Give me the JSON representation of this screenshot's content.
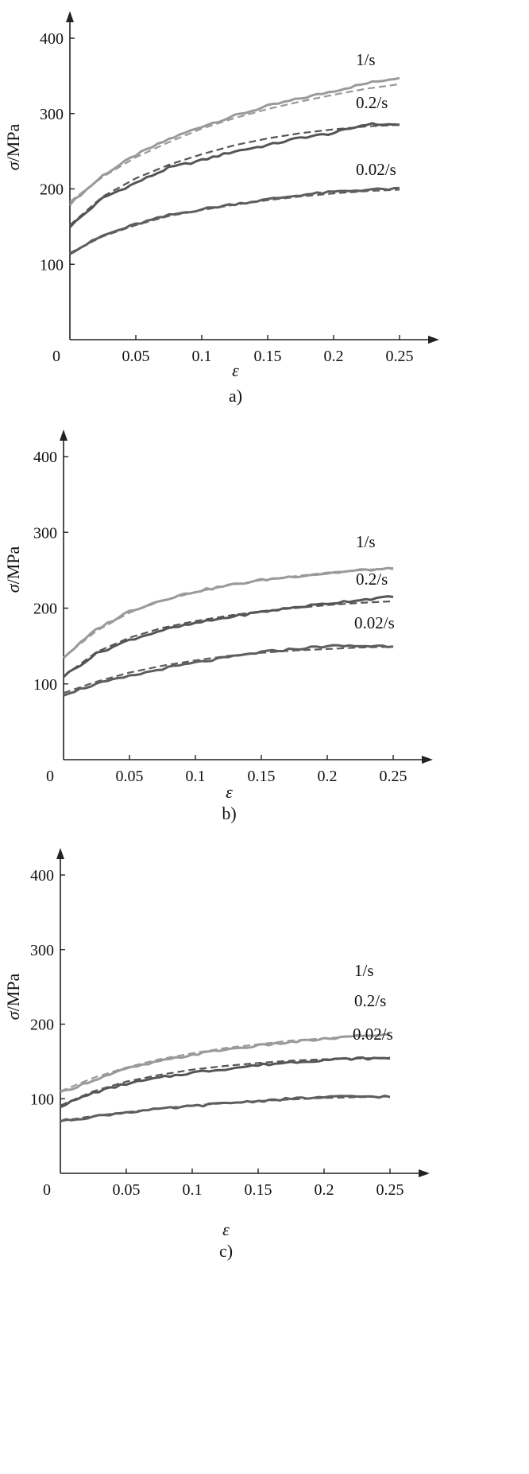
{
  "chart_data": [
    {
      "type": "line",
      "panel_label": "a)",
      "xlabel": "ε",
      "ylabel": "σ/MPa",
      "xlim": [
        0,
        0.25
      ],
      "ylim": [
        0,
        400
      ],
      "xticks": [
        "0",
        "0.05",
        "0.1",
        "0.15",
        "0.2",
        "0.25"
      ],
      "xtick_values": [
        0,
        0.05,
        0.1,
        0.15,
        0.2,
        0.25
      ],
      "yticks": [
        "100",
        "200",
        "300",
        "400"
      ],
      "ytick_values": [
        100,
        200,
        300,
        400
      ],
      "series": [
        {
          "name": "1/s",
          "color": "#9a9a9a",
          "x": [
            0,
            0.025,
            0.05,
            0.075,
            0.1,
            0.125,
            0.15,
            0.175,
            0.2,
            0.225,
            0.25
          ],
          "measured": [
            180,
            218,
            245,
            266,
            283,
            297,
            310,
            320,
            330,
            340,
            348
          ],
          "fitted": [
            183,
            216,
            242,
            262,
            280,
            294,
            306,
            316,
            325,
            333,
            339
          ]
        },
        {
          "name": "0.2/s",
          "color": "#555555",
          "x": [
            0,
            0.025,
            0.05,
            0.075,
            0.1,
            0.125,
            0.15,
            0.175,
            0.2,
            0.225,
            0.25
          ],
          "measured": [
            150,
            188,
            208,
            228,
            238,
            250,
            258,
            268,
            274,
            286,
            285
          ],
          "fitted": [
            152,
            190,
            214,
            232,
            246,
            258,
            267,
            274,
            279,
            283,
            285
          ]
        },
        {
          "name": "0.02/s",
          "color": "#5e5e5e",
          "x": [
            0,
            0.025,
            0.05,
            0.075,
            0.1,
            0.125,
            0.15,
            0.175,
            0.2,
            0.225,
            0.25
          ],
          "measured": [
            115,
            138,
            153,
            165,
            173,
            180,
            186,
            192,
            196,
            199,
            200
          ],
          "fitted": [
            115,
            137,
            152,
            164,
            172,
            179,
            185,
            190,
            194,
            197,
            199
          ]
        }
      ]
    },
    {
      "type": "line",
      "panel_label": "b)",
      "xlabel": "ε",
      "ylabel": "σ/MPa",
      "xlim": [
        0,
        0.25
      ],
      "ylim": [
        0,
        400
      ],
      "xticks": [
        "0",
        "0.05",
        "0.1",
        "0.15",
        "0.2",
        "0.25"
      ],
      "xtick_values": [
        0,
        0.05,
        0.1,
        0.15,
        0.2,
        0.25
      ],
      "yticks": [
        "100",
        "200",
        "300",
        "400"
      ],
      "ytick_values": [
        100,
        200,
        300,
        400
      ],
      "series": [
        {
          "name": "1/s",
          "color": "#9a9a9a",
          "x": [
            0,
            0.025,
            0.05,
            0.075,
            0.1,
            0.125,
            0.15,
            0.175,
            0.2,
            0.225,
            0.25
          ],
          "measured": [
            135,
            172,
            196,
            211,
            222,
            230,
            237,
            242,
            246,
            250,
            252
          ],
          "fitted": [
            135,
            170,
            194,
            210,
            221,
            230,
            237,
            242,
            247,
            250,
            253
          ]
        },
        {
          "name": "0.2/s",
          "color": "#555555",
          "x": [
            0,
            0.025,
            0.05,
            0.075,
            0.1,
            0.125,
            0.15,
            0.175,
            0.2,
            0.225,
            0.25
          ],
          "measured": [
            110,
            140,
            158,
            171,
            180,
            188,
            195,
            201,
            206,
            211,
            215
          ],
          "fitted": [
            110,
            142,
            161,
            174,
            183,
            190,
            196,
            200,
            204,
            207,
            209
          ]
        },
        {
          "name": "0.02/s",
          "color": "#5e5e5e",
          "x": [
            0,
            0.025,
            0.05,
            0.075,
            0.1,
            0.125,
            0.15,
            0.175,
            0.2,
            0.225,
            0.25
          ],
          "measured": [
            86,
            100,
            110,
            120,
            128,
            135,
            142,
            146,
            150,
            150,
            150
          ],
          "fitted": [
            88,
            103,
            115,
            124,
            131,
            137,
            141,
            144,
            146,
            148,
            149
          ]
        }
      ]
    },
    {
      "type": "line",
      "panel_label": "c)",
      "xlabel": "ε",
      "ylabel": "σ/MPa",
      "xlim": [
        0,
        0.25
      ],
      "ylim": [
        0,
        400
      ],
      "xticks": [
        "0",
        "0.05",
        "0.1",
        "0.15",
        "0.2",
        "0.25"
      ],
      "xtick_values": [
        0,
        0.05,
        0.1,
        0.15,
        0.2,
        0.25
      ],
      "yticks": [
        "100",
        "200",
        "300",
        "400"
      ],
      "ytick_values": [
        100,
        200,
        300,
        400
      ],
      "series": [
        {
          "name": "1/s",
          "color": "#9a9a9a",
          "x": [
            0,
            0.025,
            0.05,
            0.075,
            0.1,
            0.125,
            0.15,
            0.175,
            0.2,
            0.225,
            0.25
          ],
          "measured": [
            108,
            125,
            140,
            150,
            159,
            166,
            171,
            176,
            180,
            184,
            186
          ],
          "fitted": [
            110,
            128,
            142,
            153,
            161,
            168,
            173,
            178,
            181,
            184,
            186
          ]
        },
        {
          "name": "0.2/s",
          "color": "#555555",
          "x": [
            0,
            0.025,
            0.05,
            0.075,
            0.1,
            0.125,
            0.15,
            0.175,
            0.2,
            0.225,
            0.25
          ],
          "measured": [
            90,
            108,
            120,
            128,
            135,
            140,
            145,
            149,
            152,
            154,
            154
          ],
          "fitted": [
            91,
            110,
            123,
            132,
            139,
            144,
            148,
            151,
            153,
            154,
            155
          ]
        },
        {
          "name": "0.02/s",
          "color": "#5e5e5e",
          "x": [
            0,
            0.025,
            0.05,
            0.075,
            0.1,
            0.125,
            0.15,
            0.175,
            0.2,
            0.225,
            0.25
          ],
          "measured": [
            70,
            76,
            82,
            86,
            90,
            94,
            97,
            100,
            102,
            103,
            103
          ],
          "fitted": [
            70,
            77,
            82,
            87,
            91,
            94,
            97,
            99,
            101,
            102,
            103
          ]
        }
      ]
    }
  ]
}
